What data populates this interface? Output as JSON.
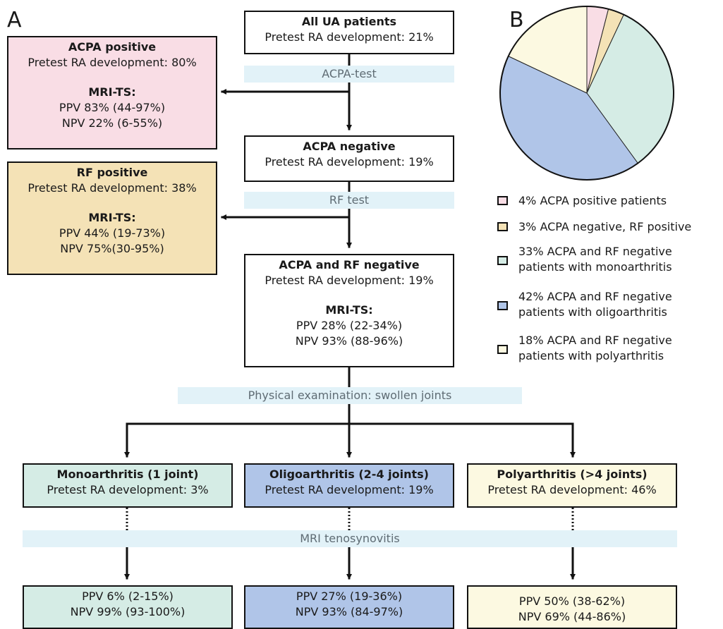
{
  "panels": {
    "a": "A",
    "b": "B"
  },
  "colors": {
    "acpa_pos": "#f9dde5",
    "rf_pos": "#f4e2b6",
    "mono": "#d5ece5",
    "oligo": "#b0c5e8",
    "poly": "#fcf9e1",
    "band": "#e2f2f8"
  },
  "root": {
    "title": "All UA patients",
    "line1": "Pretest RA development: 21%"
  },
  "acpa_pos": {
    "title": "ACPA positive",
    "line1": "Pretest RA development: 80%",
    "mri_title": "MRI-TS:",
    "ppv": "PPV 83% (44-97%)",
    "npv": "NPV 22% (6-55%)"
  },
  "acpa_neg": {
    "title": "ACPA negative",
    "line1": "Pretest RA development: 19%"
  },
  "rf_pos": {
    "title": "RF positive",
    "line1": "Pretest RA development: 38%",
    "mri_title": "MRI-TS:",
    "ppv": "PPV 44% (19-73%)",
    "npv": "NPV 75%(30-95%)"
  },
  "acpa_rf_neg": {
    "title": "ACPA and RF negative",
    "line1": "Pretest RA development: 19%",
    "mri_title": "MRI-TS:",
    "ppv": "PPV 28% (22-34%)",
    "npv": "NPV 93% (88-96%)"
  },
  "bands": {
    "acpa_test": "ACPA-test",
    "rf_test": "RF test",
    "physical": "Physical examination: swollen joints",
    "mri": "MRI tenosynovitis"
  },
  "mono": {
    "title": "Monoarthritis (1 joint)",
    "line1": "Pretest RA development: 3%",
    "ppv": "PPV 6% (2-15%)",
    "npv": "NPV 99% (93-100%)"
  },
  "oligo": {
    "title": "Oligoarthritis (2-4 joints)",
    "line1": "Pretest RA development: 19%",
    "ppv": "PPV 27% (19-36%)",
    "npv": "NPV 93% (84-97%)"
  },
  "poly": {
    "title": "Polyarthritis (>4 joints)",
    "line1": "Pretest RA development: 46%",
    "ppv": "PPV 50% (38-62%)",
    "npv": "NPV 69% (44-86%)"
  },
  "chart_data": {
    "type": "pie",
    "categories": [
      "ACPA positive patients",
      "ACPA negative, RF positive",
      "ACPA and RF negative patients with monoarthritis",
      "ACPA and RF negative patients with oligoarthritis",
      "ACPA and RF negative patients with polyarthritis"
    ],
    "values": [
      4,
      3,
      33,
      42,
      18
    ],
    "colors": [
      "#f9dde5",
      "#f4e2b6",
      "#d5ece5",
      "#b0c5e8",
      "#fcf9e1"
    ],
    "start": "top, clockwise",
    "legend_position": "below"
  },
  "legend": [
    {
      "line1": "4% ACPA positive patients",
      "line2": ""
    },
    {
      "line1": "3% ACPA negative, RF positive",
      "line2": ""
    },
    {
      "line1": "33% ACPA and RF negative",
      "line2": "patients with monoarthritis"
    },
    {
      "line1": "42% ACPA and RF negative",
      "line2": "patients with oligoarthritis"
    },
    {
      "line1": "18% ACPA and RF negative",
      "line2": "patients with polyarthritis"
    }
  ]
}
